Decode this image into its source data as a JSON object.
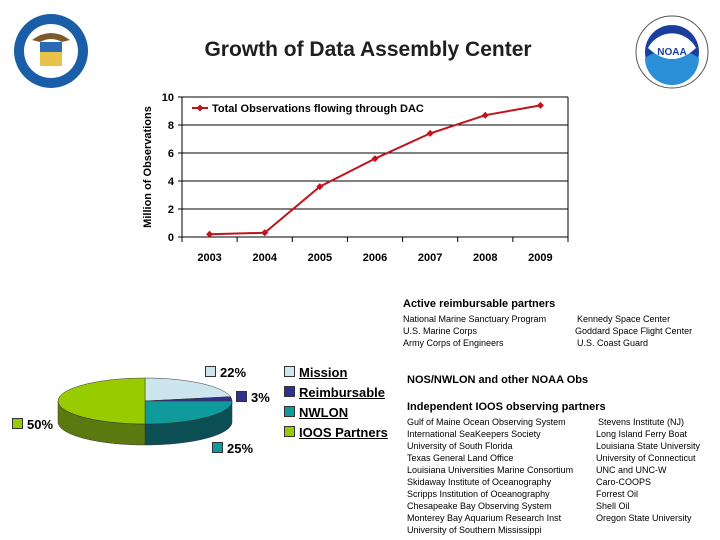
{
  "title": "Growth of Data Assembly Center",
  "logos": {
    "left": "U.S. Department of Commerce seal",
    "right": "NOAA"
  },
  "chart_data": [
    {
      "type": "line",
      "title": "",
      "xlabel": "",
      "ylabel": "Million of Observations",
      "categories": [
        "2003",
        "2004",
        "2005",
        "2006",
        "2007",
        "2008",
        "2009"
      ],
      "series": [
        {
          "name": "Total Observations flowing through DAC",
          "values": [
            0.2,
            0.3,
            3.6,
            5.6,
            7.4,
            8.7,
            9.4
          ],
          "color": "#c0141c"
        }
      ],
      "ylim": [
        0,
        10
      ],
      "yticks": [
        "0",
        "2",
        "4",
        "6",
        "8",
        "10"
      ],
      "grid": true,
      "legend": "top-left"
    },
    {
      "type": "pie",
      "title": "",
      "slices": [
        {
          "name": "Mission",
          "value": 22,
          "label": "22%",
          "color": "#cde6ee",
          "side": "#9fb8c0"
        },
        {
          "name": "Reimbursable",
          "value": 3,
          "label": "3%",
          "color": "#2e3192",
          "side": "#1c1e60"
        },
        {
          "name": "NWLON",
          "value": 25,
          "label": "25%",
          "color": "#0f9b9b",
          "side": "#0b4f55"
        },
        {
          "name": "IOOS Partners",
          "value": 50,
          "label": "50%",
          "color": "#99cc00",
          "side": "#5a7a10"
        }
      ],
      "legend": "right"
    }
  ],
  "reimbursable": {
    "heading": "Active reimbursable partners",
    "col1": [
      "National Marine Sanctuary Program",
      "U.S. Marine Corps",
      "Army Corps of Engineers"
    ],
    "col2": [
      "Kennedy Space Center",
      "Goddard Space Flight Center",
      "U.S. Coast Guard"
    ]
  },
  "nos_heading": "NOS/NWLON and other NOAA Obs",
  "ioos": {
    "heading": "Independent IOOS observing partners",
    "col1": [
      "Gulf of Maine Ocean Observing System",
      "International SeaKeepers Society",
      "University of South Florida",
      "Texas General Land Office",
      "Louisiana Universities Marine Consortium",
      "Skidaway Institute of Oceanography",
      "Scripps Institution of Oceanography",
      "Chesapeake Bay Observing System",
      "Monterey Bay Aquarium Research Inst",
      "University of Southern Mississippi"
    ],
    "col2": [
      "Stevens Institute (NJ)",
      "Long Island Ferry Boat",
      "Louisiana State University",
      "University of Connecticut",
      "UNC and UNC-W",
      "Caro-COOPS",
      "Forrest Oil",
      "Shell Oil",
      "Oregon State University"
    ]
  }
}
